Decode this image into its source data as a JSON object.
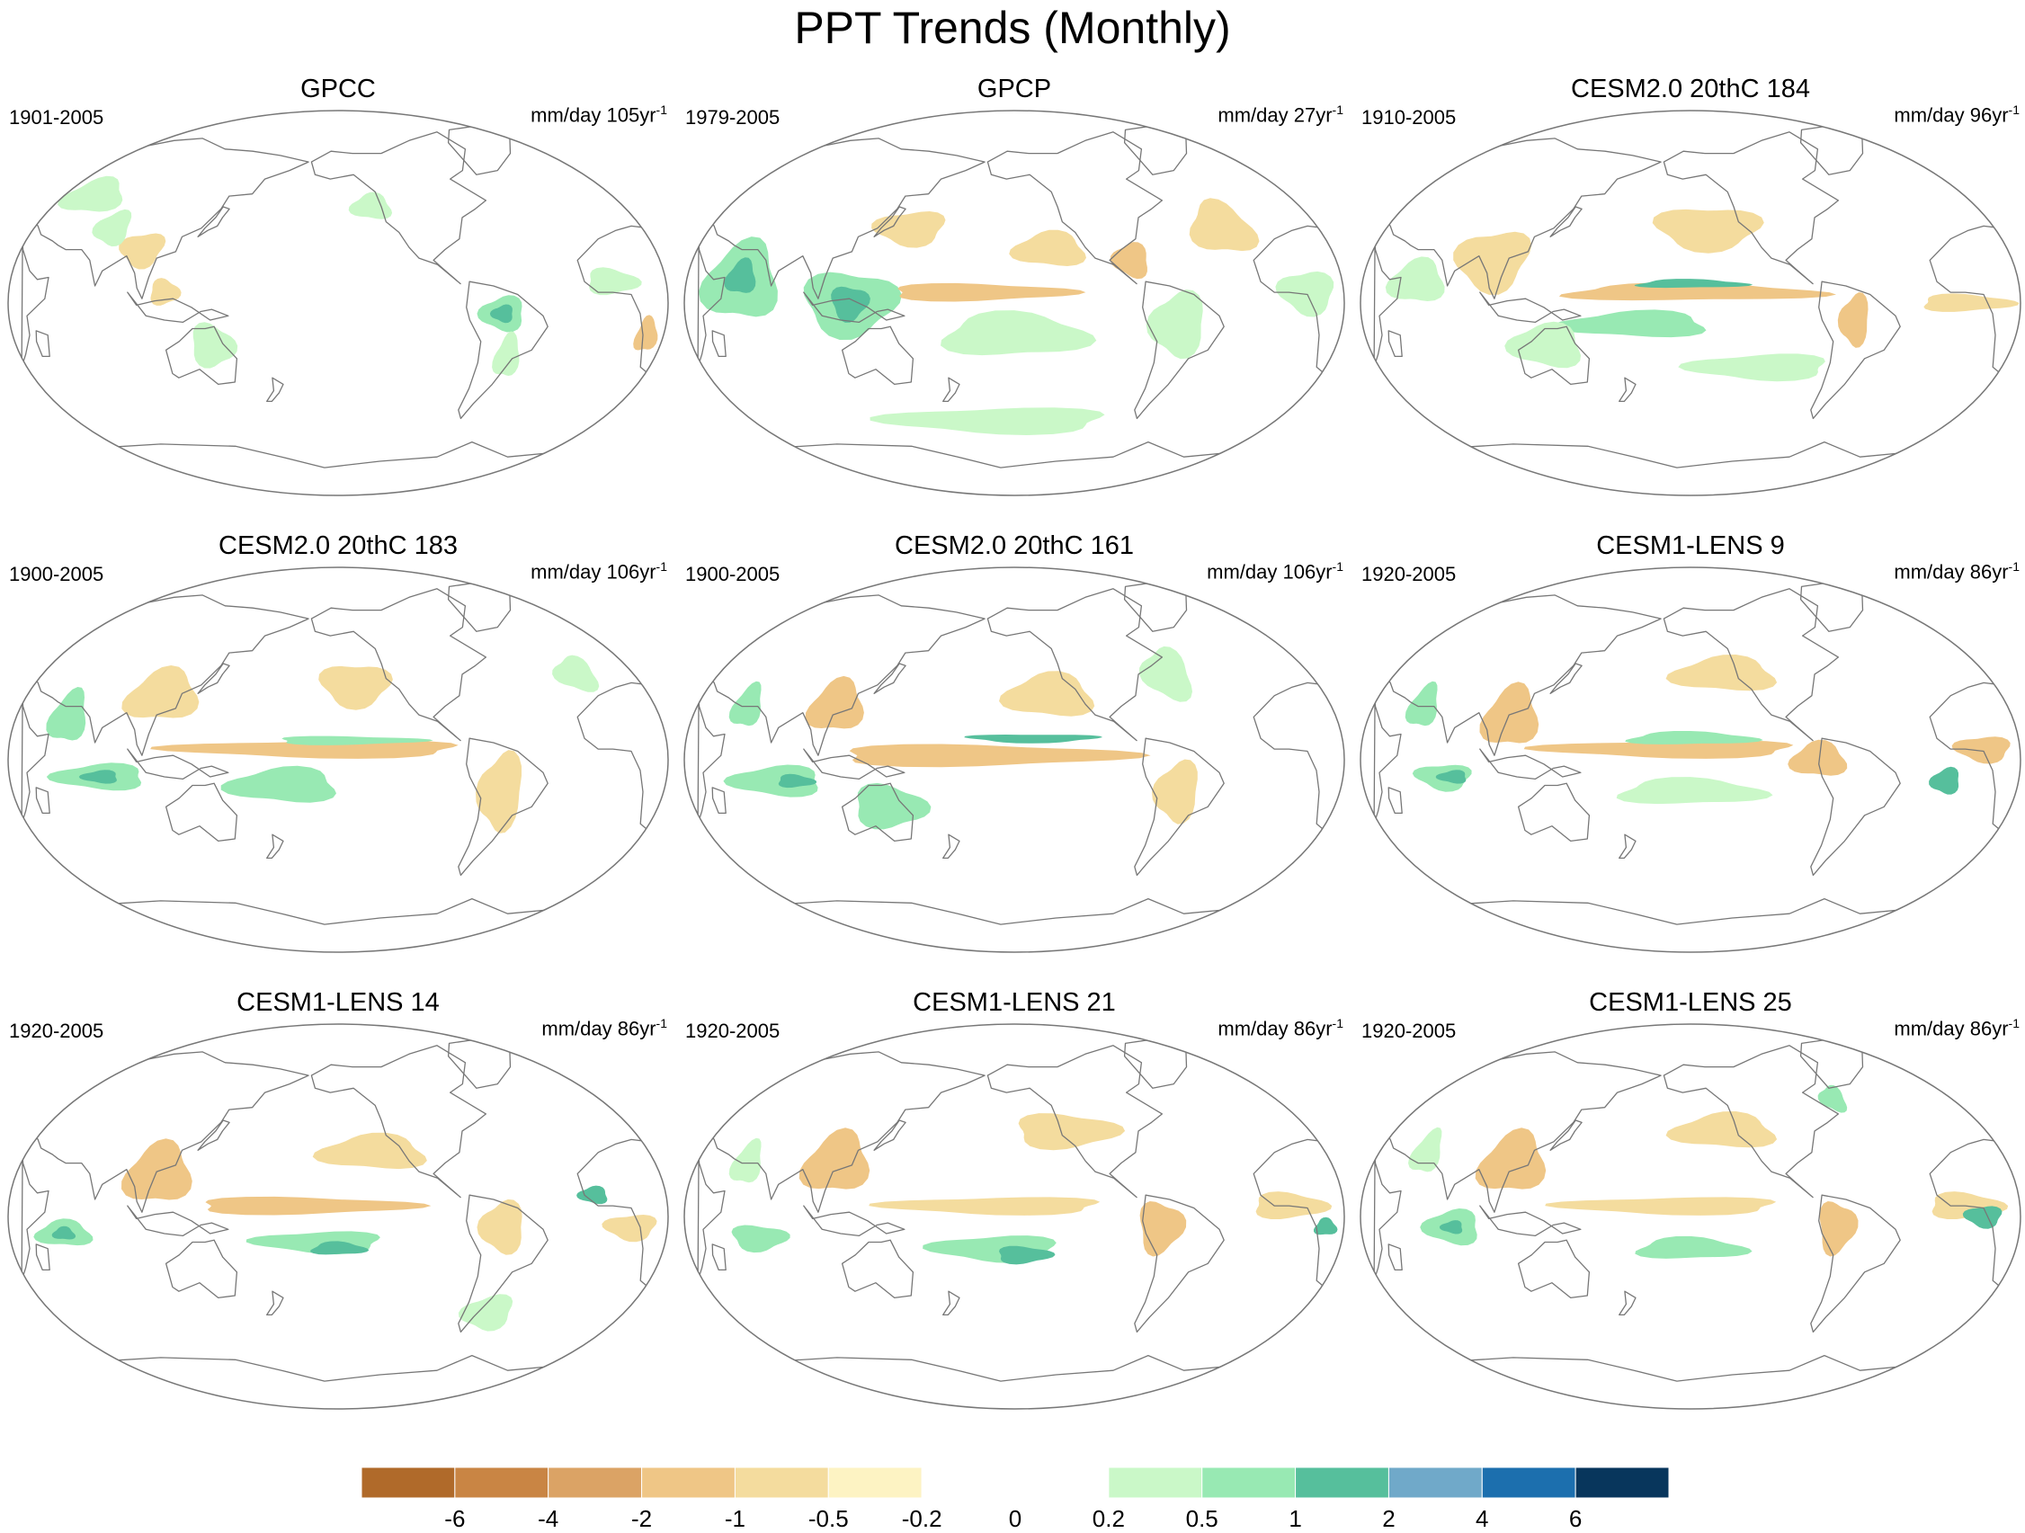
{
  "figure": {
    "title": "PPT Trends (Monthly)",
    "panel_units": "mm/day",
    "projection": "Robinson-like world map centered on the Pacific"
  },
  "panels": [
    {
      "title": "GPCC",
      "years": "1901-2005",
      "units_prefix": "mm/day",
      "trend_period": "105yr",
      "units_exp": "-1"
    },
    {
      "title": "GPCP",
      "years": "1979-2005",
      "units_prefix": "mm/day",
      "trend_period": "27yr",
      "units_exp": "-1"
    },
    {
      "title": "CESM2.0 20thC 184",
      "years": "1910-2005",
      "units_prefix": "mm/day",
      "trend_period": "96yr",
      "units_exp": "-1"
    },
    {
      "title": "CESM2.0 20thC 183",
      "years": "1900-2005",
      "units_prefix": "mm/day",
      "trend_period": "106yr",
      "units_exp": "-1"
    },
    {
      "title": "CESM2.0 20thC 161",
      "years": "1900-2005",
      "units_prefix": "mm/day",
      "trend_period": "106yr",
      "units_exp": "-1"
    },
    {
      "title": "CESM1-LENS 9",
      "years": "1920-2005",
      "units_prefix": "mm/day",
      "trend_period": "86yr",
      "units_exp": "-1"
    },
    {
      "title": "CESM1-LENS 14",
      "years": "1920-2005",
      "units_prefix": "mm/day",
      "trend_period": "86yr",
      "units_exp": "-1"
    },
    {
      "title": "CESM1-LENS 21",
      "years": "1920-2005",
      "units_prefix": "mm/day",
      "trend_period": "86yr",
      "units_exp": "-1"
    },
    {
      "title": "CESM1-LENS 25",
      "years": "1920-2005",
      "units_prefix": "mm/day",
      "trend_period": "86yr",
      "units_exp": "-1"
    }
  ],
  "colorbar": {
    "tick_labels": [
      "-6",
      "-4",
      "-2",
      "-1",
      "-0.5",
      "-0.2",
      "0",
      "0.2",
      "0.5",
      "1",
      "2",
      "4",
      "6"
    ],
    "colors": [
      "#b06a2a",
      "#c98544",
      "#dba365",
      "#efc686",
      "#f4dc9e",
      "#fdf3c3",
      "#ffffff",
      "#ffffff",
      "#caf8c8",
      "#98e9b3",
      "#56bf9c",
      "#70a9c9",
      "#1c6fae",
      "#08365c"
    ]
  },
  "colors": {
    "dry_strong": "#dba365",
    "dry": "#efc686",
    "dry_light": "#f4dc9e",
    "wet_light": "#caf8c8",
    "wet": "#98e9b3",
    "wet_strong": "#56bf9c",
    "coast": "#777777",
    "outline": "#777777"
  }
}
